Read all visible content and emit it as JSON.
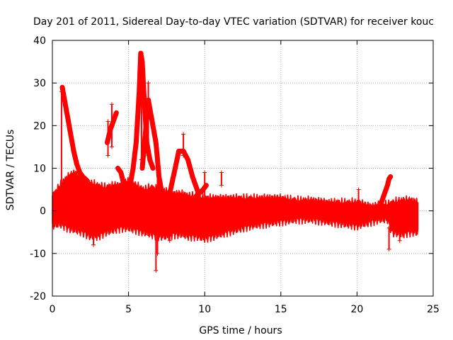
{
  "chart_data": {
    "type": "scatter",
    "title": "Day 201 of 2011, Sidereal Day-to-day VTEC variation (SDTVAR) for receiver kouc",
    "xlabel": "GPS time / hours",
    "ylabel": "SDTVAR / TECUs",
    "xlim": [
      0,
      25
    ],
    "ylim": [
      -20,
      40
    ],
    "xticks": [
      0,
      5,
      10,
      15,
      20,
      25
    ],
    "yticks": [
      -20,
      -10,
      0,
      10,
      20,
      30,
      40
    ],
    "xtick_labels": [
      "0",
      "5",
      "10",
      "15",
      "20",
      "25"
    ],
    "ytick_labels": [
      "-20",
      "-10",
      "0",
      "10",
      "20",
      "30",
      "40"
    ],
    "grid": true,
    "marker": "+",
    "color": "#ff0000",
    "series": [
      {
        "name": "SDTVAR",
        "band": [
          {
            "x": 0.0,
            "min": -3.5,
            "max": 3.5
          },
          {
            "x": 0.5,
            "min": -3.0,
            "max": 6.0
          },
          {
            "x": 1.0,
            "min": -4.0,
            "max": 8.0
          },
          {
            "x": 1.5,
            "min": -4.5,
            "max": 9.0
          },
          {
            "x": 2.0,
            "min": -5.0,
            "max": 7.0
          },
          {
            "x": 2.5,
            "min": -6.0,
            "max": 6.5
          },
          {
            "x": 3.0,
            "min": -6.0,
            "max": 6.0
          },
          {
            "x": 3.5,
            "min": -5.0,
            "max": 5.5
          },
          {
            "x": 4.0,
            "min": -4.5,
            "max": 6.0
          },
          {
            "x": 4.5,
            "min": -4.0,
            "max": 6.0
          },
          {
            "x": 5.0,
            "min": -4.0,
            "max": 7.0
          },
          {
            "x": 5.5,
            "min": -4.5,
            "max": 6.0
          },
          {
            "x": 6.0,
            "min": -5.0,
            "max": 5.0
          },
          {
            "x": 6.5,
            "min": -5.5,
            "max": 5.5
          },
          {
            "x": 7.0,
            "min": -6.0,
            "max": 5.0
          },
          {
            "x": 7.5,
            "min": -6.0,
            "max": 4.5
          },
          {
            "x": 8.0,
            "min": -5.5,
            "max": 4.0
          },
          {
            "x": 8.5,
            "min": -5.5,
            "max": 4.0
          },
          {
            "x": 9.0,
            "min": -6.0,
            "max": 3.5
          },
          {
            "x": 9.5,
            "min": -6.0,
            "max": 3.5
          },
          {
            "x": 10.0,
            "min": -6.5,
            "max": 3.0
          },
          {
            "x": 10.5,
            "min": -6.0,
            "max": 3.0
          },
          {
            "x": 11.0,
            "min": -5.5,
            "max": 3.0
          },
          {
            "x": 11.5,
            "min": -5.0,
            "max": 3.0
          },
          {
            "x": 12.0,
            "min": -4.5,
            "max": 3.0
          },
          {
            "x": 13.0,
            "min": -3.5,
            "max": 3.0
          },
          {
            "x": 14.0,
            "min": -3.0,
            "max": 3.0
          },
          {
            "x": 15.0,
            "min": -2.5,
            "max": 3.0
          },
          {
            "x": 16.0,
            "min": -2.0,
            "max": 2.5
          },
          {
            "x": 17.0,
            "min": -2.0,
            "max": 2.5
          },
          {
            "x": 18.0,
            "min": -2.5,
            "max": 2.0
          },
          {
            "x": 19.0,
            "min": -3.0,
            "max": 2.0
          },
          {
            "x": 20.0,
            "min": -3.5,
            "max": 2.0
          },
          {
            "x": 20.5,
            "min": -3.0,
            "max": 1.5
          },
          {
            "x": 21.0,
            "min": -2.5,
            "max": 1.0
          },
          {
            "x": 21.5,
            "min": -2.0,
            "max": 1.5
          },
          {
            "x": 22.0,
            "min": -2.0,
            "max": 1.5
          },
          {
            "x": 22.3,
            "min": -5.0,
            "max": 2.0
          },
          {
            "x": 23.0,
            "min": -5.5,
            "max": 2.5
          },
          {
            "x": 23.5,
            "min": -5.0,
            "max": 2.5
          },
          {
            "x": 24.0,
            "min": -5.0,
            "max": 2.0
          }
        ],
        "arcs": [
          {
            "x": [
              0.65,
              0.8,
              1.0,
              1.2,
              1.4,
              1.6,
              1.8,
              2.0,
              2.3
            ],
            "y": [
              29,
              26,
              22,
              18,
              14,
              11,
              9,
              8,
              7
            ]
          },
          {
            "x": [
              3.6,
              3.7,
              3.8,
              3.9,
              4.0,
              4.1,
              4.2
            ],
            "y": [
              16,
              17.5,
              19,
              20,
              21,
              22,
              23
            ]
          },
          {
            "x": [
              4.3,
              4.5,
              4.7,
              4.9,
              5.1,
              5.3,
              5.5,
              5.7,
              5.8,
              5.9,
              6.0,
              6.1,
              6.2,
              6.4,
              6.6
            ],
            "y": [
              10,
              9,
              6,
              5,
              6,
              10,
              16,
              28,
              37,
              35,
              28,
              22,
              16,
              12,
              10
            ]
          },
          {
            "x": [
              5.9,
              6.1,
              6.3,
              6.5,
              6.8,
              7.0,
              7.2
            ],
            "y": [
              10,
              18,
              26,
              22,
              16,
              8,
              4
            ]
          },
          {
            "x": [
              7.7,
              8.0,
              8.3,
              8.6,
              8.9,
              9.2,
              9.6,
              9.9,
              10.1
            ],
            "y": [
              4,
              9,
              14,
              14,
              12,
              8,
              4,
              5,
              6
            ]
          },
          {
            "x": [
              21.6,
              21.8,
              22.0,
              22.1,
              22.2
            ],
            "y": [
              2,
              4,
              6,
              7.5,
              8
            ]
          }
        ],
        "spikes": [
          {
            "x": 0.6,
            "min": -3,
            "max": 28
          },
          {
            "x": 3.65,
            "min": 13,
            "max": 21
          },
          {
            "x": 3.9,
            "min": 15,
            "max": 25
          },
          {
            "x": 5.85,
            "min": 12,
            "max": 37
          },
          {
            "x": 6.3,
            "min": 13,
            "max": 30
          },
          {
            "x": 6.8,
            "min": -14,
            "max": 0
          },
          {
            "x": 6.9,
            "min": -10,
            "max": 12
          },
          {
            "x": 7.7,
            "min": -7,
            "max": 0
          },
          {
            "x": 8.6,
            "min": 13,
            "max": 18
          },
          {
            "x": 10.0,
            "min": 0,
            "max": 9
          },
          {
            "x": 11.1,
            "min": 6,
            "max": 9
          },
          {
            "x": 2.7,
            "min": -8,
            "max": -5
          },
          {
            "x": 20.1,
            "min": 2,
            "max": 5
          },
          {
            "x": 22.1,
            "min": -9,
            "max": -4
          },
          {
            "x": 22.8,
            "min": -7,
            "max": -5
          }
        ]
      }
    ]
  }
}
